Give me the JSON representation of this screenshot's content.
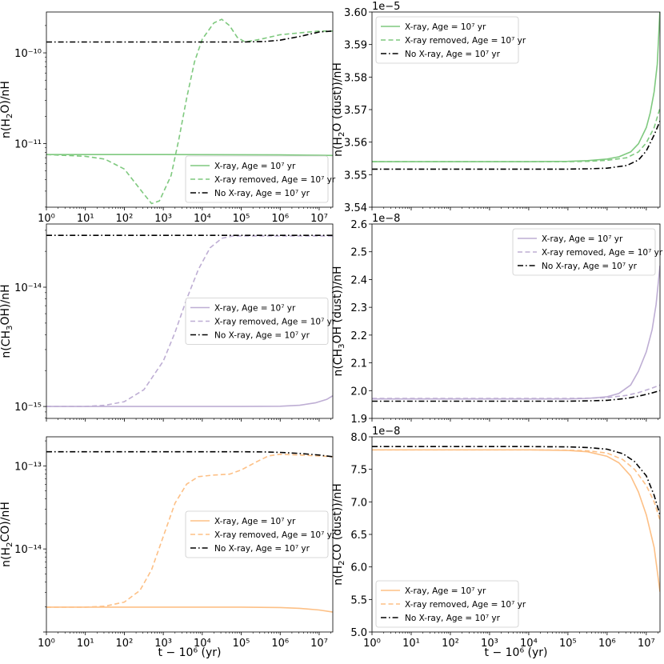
{
  "figure": {
    "xlabel": "t − 10⁶ (yr)",
    "legend_labels": [
      "X-ray, Age = 10⁷ yr",
      "X-ray removed, Age = 10⁷ yr",
      "No X-ray, Age = 10⁷ yr"
    ],
    "colors": {
      "green": "#7fc97f",
      "purple": "#beaed4",
      "orange": "#fdc086",
      "black": "#000000"
    }
  },
  "chart_data": [
    {
      "id": "h2o-gas",
      "type": "line",
      "position": "top-left",
      "ylabel": "n(H₂O)/nH",
      "yscale": "log",
      "ylim_log10": [
        -11.7,
        -9.55
      ],
      "xscale": "log",
      "xlim_log10": [
        0,
        7.35
      ],
      "xtick_labels": [
        "10⁰",
        "10¹",
        "10²",
        "10³",
        "10⁴",
        "10⁵",
        "10⁶",
        "10⁷"
      ],
      "ytick_labels": [
        "10⁻¹⁰",
        "10⁻¹¹"
      ],
      "legend_loc": "lower-right",
      "color": "#7fc97f",
      "offset_text": "",
      "series": [
        {
          "name": "X-ray, Age = 10⁷ yr",
          "style": "solid",
          "points": [
            [
              0,
              -11.12
            ],
            [
              3,
              -11.12
            ],
            [
              5,
              -11.122
            ],
            [
              6,
              -11.124
            ],
            [
              7,
              -11.128
            ],
            [
              7.35,
              -11.13
            ]
          ]
        },
        {
          "name": "X-ray removed, Age = 10⁷ yr",
          "style": "dashed",
          "points": [
            [
              0,
              -11.12
            ],
            [
              1,
              -11.14
            ],
            [
              1.5,
              -11.17
            ],
            [
              2,
              -11.28
            ],
            [
              2.4,
              -11.5
            ],
            [
              2.7,
              -11.66
            ],
            [
              2.9,
              -11.63
            ],
            [
              3.2,
              -11.35
            ],
            [
              3.4,
              -10.95
            ],
            [
              3.6,
              -10.5
            ],
            [
              3.8,
              -10.1
            ],
            [
              4.0,
              -9.85
            ],
            [
              4.3,
              -9.67
            ],
            [
              4.5,
              -9.63
            ],
            [
              4.7,
              -9.7
            ],
            [
              4.9,
              -9.83
            ],
            [
              5.1,
              -9.88
            ],
            [
              5.5,
              -9.85
            ],
            [
              6,
              -9.8
            ],
            [
              6.5,
              -9.78
            ],
            [
              7,
              -9.76
            ],
            [
              7.35,
              -9.76
            ]
          ]
        },
        {
          "name": "No X-ray, Age = 10⁷ yr",
          "style": "dashdot",
          "points": [
            [
              0,
              -9.88
            ],
            [
              5,
              -9.88
            ],
            [
              5.6,
              -9.875
            ],
            [
              6,
              -9.86
            ],
            [
              6.5,
              -9.82
            ],
            [
              7,
              -9.77
            ],
            [
              7.35,
              -9.76
            ]
          ]
        }
      ]
    },
    {
      "id": "h2o-dust",
      "type": "line",
      "position": "top-right",
      "ylabel": "n(H₂O (dust))/nH",
      "yscale": "linear",
      "ylim": [
        3.54,
        3.6
      ],
      "yticks": [
        3.54,
        3.55,
        3.56,
        3.57,
        3.58,
        3.59,
        3.6
      ],
      "ytick_labels": [
        "3.54",
        "3.55",
        "3.56",
        "3.57",
        "3.58",
        "3.59",
        "3.60"
      ],
      "xscale": "log",
      "xlim_log10": [
        0,
        7.35
      ],
      "xtick_labels": [],
      "legend_loc": "upper-left",
      "color": "#7fc97f",
      "offset_text": "1e−5",
      "series": [
        {
          "name": "X-ray, Age = 10⁷ yr",
          "style": "solid",
          "points": [
            [
              0,
              3.554
            ],
            [
              4,
              3.554
            ],
            [
              5,
              3.5541
            ],
            [
              5.5,
              3.5543
            ],
            [
              6,
              3.5548
            ],
            [
              6.3,
              3.5555
            ],
            [
              6.6,
              3.557
            ],
            [
              6.8,
              3.5595
            ],
            [
              7.0,
              3.5645
            ],
            [
              7.1,
              3.569
            ],
            [
              7.2,
              3.5755
            ],
            [
              7.28,
              3.584
            ],
            [
              7.35,
              3.601
            ]
          ]
        },
        {
          "name": "X-ray removed, Age = 10⁷ yr",
          "style": "dashed",
          "points": [
            [
              0,
              3.554
            ],
            [
              5,
              3.554
            ],
            [
              5.5,
              3.5541
            ],
            [
              6,
              3.5544
            ],
            [
              6.5,
              3.5552
            ],
            [
              6.8,
              3.557
            ],
            [
              7.0,
              3.5598
            ],
            [
              7.2,
              3.5645
            ],
            [
              7.35,
              3.5705
            ]
          ]
        },
        {
          "name": "No X-ray, Age = 10⁷ yr",
          "style": "dashdot",
          "points": [
            [
              0,
              3.5517
            ],
            [
              5,
              3.5517
            ],
            [
              5.5,
              3.5518
            ],
            [
              6,
              3.552
            ],
            [
              6.5,
              3.5528
            ],
            [
              6.8,
              3.5545
            ],
            [
              7.0,
              3.5573
            ],
            [
              7.2,
              3.5622
            ],
            [
              7.35,
              3.5665
            ]
          ]
        }
      ]
    },
    {
      "id": "ch3oh-gas",
      "type": "line",
      "position": "middle-left",
      "ylabel": "n(CH₃OH)/nH",
      "yscale": "log",
      "ylim_log10": [
        -15.1,
        -13.47
      ],
      "xscale": "log",
      "xlim_log10": [
        0,
        7.35
      ],
      "xtick_labels": [],
      "ytick_labels": [
        "10⁻¹⁴",
        "10⁻¹⁵"
      ],
      "legend_loc": "center-right",
      "color": "#beaed4",
      "offset_text": "",
      "series": [
        {
          "name": "X-ray, Age = 10⁷ yr",
          "style": "solid",
          "points": [
            [
              0,
              -15.0
            ],
            [
              5,
              -15.0
            ],
            [
              6,
              -14.998
            ],
            [
              6.5,
              -14.99
            ],
            [
              6.9,
              -14.97
            ],
            [
              7.2,
              -14.94
            ],
            [
              7.35,
              -14.91
            ]
          ]
        },
        {
          "name": "X-ray removed, Age = 10⁷ yr",
          "style": "dashed",
          "points": [
            [
              0,
              -15.0
            ],
            [
              1,
              -15.0
            ],
            [
              1.5,
              -14.99
            ],
            [
              2.0,
              -14.96
            ],
            [
              2.5,
              -14.86
            ],
            [
              3.0,
              -14.62
            ],
            [
              3.3,
              -14.38
            ],
            [
              3.6,
              -14.1
            ],
            [
              3.9,
              -13.85
            ],
            [
              4.2,
              -13.67
            ],
            [
              4.5,
              -13.59
            ],
            [
              4.8,
              -13.57
            ],
            [
              5.5,
              -13.57
            ],
            [
              7.35,
              -13.57
            ]
          ]
        },
        {
          "name": "No X-ray, Age = 10⁷ yr",
          "style": "dashdot",
          "points": [
            [
              0,
              -13.565
            ],
            [
              7.35,
              -13.565
            ]
          ]
        }
      ]
    },
    {
      "id": "ch3oh-dust",
      "type": "line",
      "position": "middle-right",
      "ylabel": "n(CH₃OH (dust))/nH",
      "yscale": "linear",
      "ylim": [
        1.9,
        2.6
      ],
      "yticks": [
        1.9,
        2.0,
        2.1,
        2.2,
        2.3,
        2.4,
        2.5,
        2.6
      ],
      "ytick_labels": [
        "1.9",
        "2.0",
        "2.1",
        "2.2",
        "2.3",
        "2.4",
        "2.5",
        "2.6"
      ],
      "xscale": "log",
      "xlim_log10": [
        0,
        7.35
      ],
      "xtick_labels": [],
      "legend_loc": "upper-right",
      "color": "#beaed4",
      "offset_text": "1e−8",
      "series": [
        {
          "name": "X-ray, Age = 10⁷ yr",
          "style": "solid",
          "points": [
            [
              0,
              1.97
            ],
            [
              5,
              1.97
            ],
            [
              5.5,
              1.972
            ],
            [
              6,
              1.978
            ],
            [
              6.3,
              1.99
            ],
            [
              6.6,
              2.02
            ],
            [
              6.8,
              2.07
            ],
            [
              7.0,
              2.14
            ],
            [
              7.15,
              2.22
            ],
            [
              7.25,
              2.31
            ],
            [
              7.35,
              2.45
            ]
          ]
        },
        {
          "name": "X-ray removed, Age = 10⁷ yr",
          "style": "dashed",
          "points": [
            [
              0,
              1.972
            ],
            [
              5,
              1.972
            ],
            [
              5.5,
              1.973
            ],
            [
              6,
              1.975
            ],
            [
              6.5,
              1.983
            ],
            [
              6.8,
              1.993
            ],
            [
              7.1,
              2.007
            ],
            [
              7.35,
              2.02
            ]
          ]
        },
        {
          "name": "No X-ray, Age = 10⁷ yr",
          "style": "dashdot",
          "points": [
            [
              0,
              1.962
            ],
            [
              5,
              1.962
            ],
            [
              5.5,
              1.963
            ],
            [
              6,
              1.965
            ],
            [
              6.5,
              1.972
            ],
            [
              6.8,
              1.98
            ],
            [
              7.1,
              1.99
            ],
            [
              7.35,
              2.0
            ]
          ]
        }
      ]
    },
    {
      "id": "h2co-gas",
      "type": "line",
      "position": "bottom-left",
      "ylabel": "n(H₂CO)/nH",
      "yscale": "log",
      "ylim_log10": [
        -15.0,
        -12.65
      ],
      "xscale": "log",
      "xlim_log10": [
        0,
        7.35
      ],
      "xtick_labels": [
        "10⁰",
        "10¹",
        "10²",
        "10³",
        "10⁴",
        "10⁵",
        "10⁶",
        "10⁷"
      ],
      "ytick_labels": [
        "10⁻¹³",
        "10⁻¹⁴"
      ],
      "legend_loc": "center-right",
      "color": "#fdc086",
      "offset_text": "",
      "series": [
        {
          "name": "X-ray, Age = 10⁷ yr",
          "style": "solid",
          "points": [
            [
              0,
              -14.7
            ],
            [
              5,
              -14.7
            ],
            [
              6,
              -14.705
            ],
            [
              6.5,
              -14.715
            ],
            [
              7,
              -14.735
            ],
            [
              7.35,
              -14.76
            ]
          ]
        },
        {
          "name": "X-ray removed, Age = 10⁷ yr",
          "style": "dashed",
          "points": [
            [
              0,
              -14.7
            ],
            [
              1,
              -14.7
            ],
            [
              1.5,
              -14.69
            ],
            [
              2.0,
              -14.64
            ],
            [
              2.4,
              -14.5
            ],
            [
              2.7,
              -14.25
            ],
            [
              3.0,
              -13.85
            ],
            [
              3.3,
              -13.45
            ],
            [
              3.6,
              -13.22
            ],
            [
              3.9,
              -13.13
            ],
            [
              4.3,
              -13.11
            ],
            [
              4.7,
              -13.1
            ],
            [
              5.0,
              -13.05
            ],
            [
              5.4,
              -12.95
            ],
            [
              5.7,
              -12.88
            ],
            [
              6.0,
              -12.86
            ],
            [
              6.5,
              -12.87
            ],
            [
              7.0,
              -12.88
            ],
            [
              7.35,
              -12.89
            ]
          ]
        },
        {
          "name": "No X-ray, Age = 10⁷ yr",
          "style": "dashdot",
          "points": [
            [
              0,
              -12.83
            ],
            [
              5,
              -12.83
            ],
            [
              5.6,
              -12.832
            ],
            [
              6,
              -12.838
            ],
            [
              6.5,
              -12.85
            ],
            [
              7,
              -12.87
            ],
            [
              7.35,
              -12.89
            ]
          ]
        }
      ]
    },
    {
      "id": "h2co-dust",
      "type": "line",
      "position": "bottom-right",
      "ylabel": "n(H₂CO (dust))/nH",
      "yscale": "linear",
      "ylim": [
        5.0,
        8.0
      ],
      "yticks": [
        5.0,
        5.5,
        6.0,
        6.5,
        7.0,
        7.5,
        8.0
      ],
      "ytick_labels": [
        "5.0",
        "5.5",
        "6.0",
        "6.5",
        "7.0",
        "7.5",
        "8.0"
      ],
      "xscale": "log",
      "xlim_log10": [
        0,
        7.35
      ],
      "xtick_labels": [
        "10⁰",
        "10¹",
        "10²",
        "10³",
        "10⁴",
        "10⁵",
        "10⁶",
        "10⁷"
      ],
      "legend_loc": "lower-left",
      "color": "#fdc086",
      "offset_text": "1e−8",
      "series": [
        {
          "name": "X-ray, Age = 10⁷ yr",
          "style": "solid",
          "points": [
            [
              0,
              7.8
            ],
            [
              4,
              7.8
            ],
            [
              5,
              7.79
            ],
            [
              5.5,
              7.77
            ],
            [
              6,
              7.7
            ],
            [
              6.3,
              7.6
            ],
            [
              6.6,
              7.4
            ],
            [
              6.8,
              7.15
            ],
            [
              7.0,
              6.8
            ],
            [
              7.2,
              6.3
            ],
            [
              7.35,
              5.62
            ]
          ]
        },
        {
          "name": "X-ray removed, Age = 10⁷ yr",
          "style": "dashed",
          "points": [
            [
              0,
              7.8
            ],
            [
              4,
              7.8
            ],
            [
              5,
              7.795
            ],
            [
              5.5,
              7.785
            ],
            [
              6,
              7.75
            ],
            [
              6.4,
              7.65
            ],
            [
              6.7,
              7.5
            ],
            [
              7.0,
              7.25
            ],
            [
              7.2,
              7.0
            ],
            [
              7.35,
              6.72
            ]
          ]
        },
        {
          "name": "No X-ray, Age = 10⁷ yr",
          "style": "dashdot",
          "points": [
            [
              0,
              7.85
            ],
            [
              4,
              7.85
            ],
            [
              5,
              7.845
            ],
            [
              5.5,
              7.835
            ],
            [
              6,
              7.81
            ],
            [
              6.4,
              7.74
            ],
            [
              6.7,
              7.62
            ],
            [
              7.0,
              7.4
            ],
            [
              7.2,
              7.1
            ],
            [
              7.35,
              6.8
            ]
          ]
        }
      ]
    }
  ]
}
